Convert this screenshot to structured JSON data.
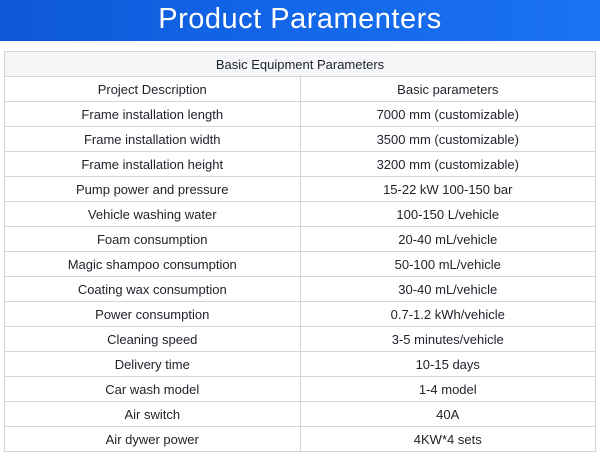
{
  "banner": {
    "title": "Product Paramenters"
  },
  "colors": {
    "banner_start": "#0d58d6",
    "banner_mid": "#1265e8",
    "banner_end": "#1b73f1",
    "banner_text": "#ffffff",
    "table_border": "#d4d6d9",
    "table_title_bg": "#f4f6f8",
    "text": "#1d2129"
  },
  "table": {
    "title": "Basic Equipment Parameters",
    "columns": [
      "Project Description",
      "Basic parameters"
    ],
    "rows": [
      {
        "label": "Frame installation length",
        "value": "7000 mm (customizable)"
      },
      {
        "label": "Frame installation width",
        "value": "3500 mm (customizable)"
      },
      {
        "label": "Frame installation height",
        "value": "3200 mm (customizable)"
      },
      {
        "label": "Pump power and pressure",
        "value": "15-22 kW 100-150 bar"
      },
      {
        "label": "Vehicle washing water",
        "value": "100-150 L/vehicle"
      },
      {
        "label": "Foam consumption",
        "value": "20-40 mL/vehicle"
      },
      {
        "label": "Magic shampoo consumption",
        "value": "50-100 mL/vehicle"
      },
      {
        "label": "Coating wax consumption",
        "value": "30-40 mL/vehicle"
      },
      {
        "label": "Power consumption",
        "value": "0.7-1.2 kWh/vehicle"
      },
      {
        "label": "Cleaning speed",
        "value": "3-5 minutes/vehicle"
      },
      {
        "label": "Delivery time",
        "value": "10-15 days"
      },
      {
        "label": "Car wash model",
        "value": "1-4 model"
      },
      {
        "label": "Air switch",
        "value": "40A"
      },
      {
        "label": "Air dywer power",
        "value": "4KW*4 sets"
      }
    ]
  }
}
